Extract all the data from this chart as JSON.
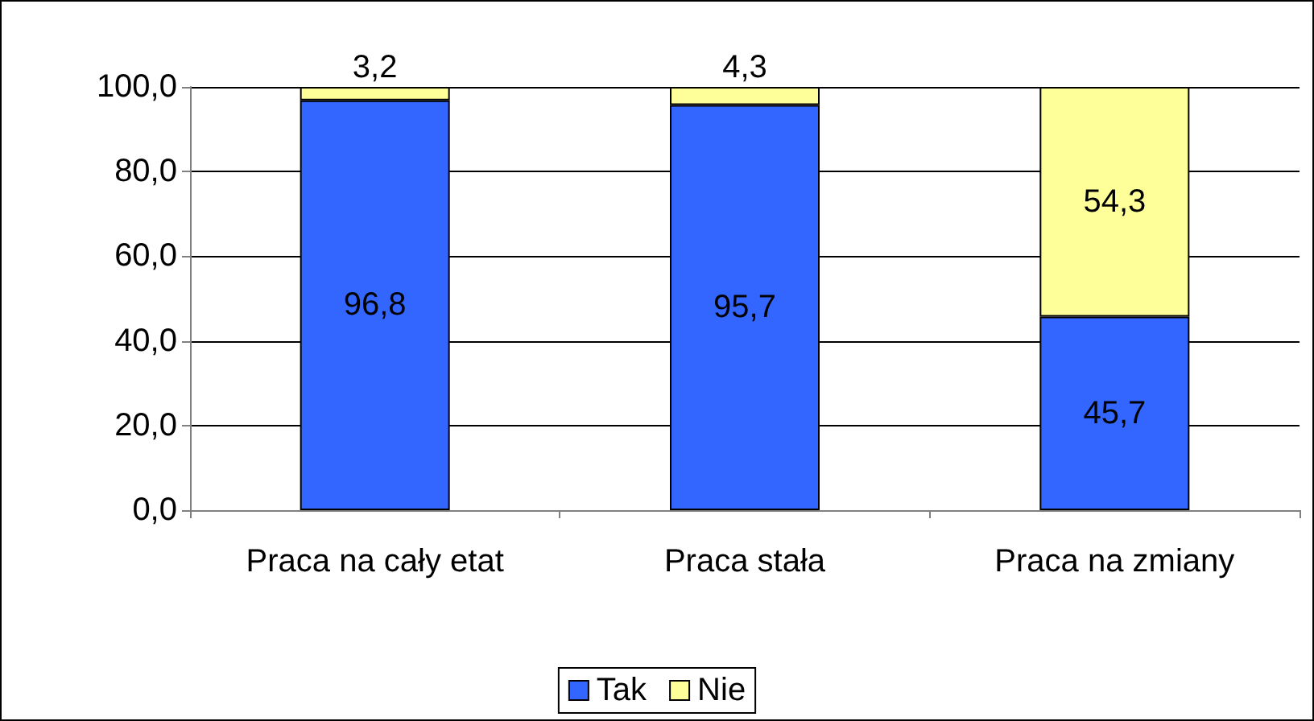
{
  "chart_data": {
    "type": "bar",
    "stacked": true,
    "categories": [
      "Praca na cały etat",
      "Praca stała",
      "Praca na zmiany"
    ],
    "series": [
      {
        "name": "Tak",
        "color": "#3366ff",
        "values": [
          96.8,
          95.7,
          45.7
        ],
        "value_labels": [
          "96,8",
          "95,7",
          "45,7"
        ]
      },
      {
        "name": "Nie",
        "color": "#ffff99",
        "values": [
          3.2,
          4.3,
          54.3
        ],
        "value_labels": [
          "3,2",
          "4,3",
          "54,3"
        ]
      }
    ],
    "ylim": [
      0,
      100
    ],
    "yticks": [
      {
        "value": 0,
        "label": "0,0"
      },
      {
        "value": 20,
        "label": "20,0"
      },
      {
        "value": 40,
        "label": "40,0"
      },
      {
        "value": 60,
        "label": "60,0"
      },
      {
        "value": 80,
        "label": "80,0"
      },
      {
        "value": 100,
        "label": "100,0"
      }
    ],
    "grid": "y",
    "legend": "bottom"
  }
}
